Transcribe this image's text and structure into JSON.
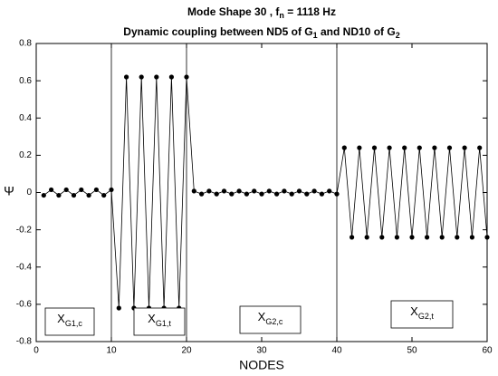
{
  "chart_data": {
    "type": "line",
    "title_parts": [
      "Mode Shape 30 , f",
      "n",
      " = 1118 Hz"
    ],
    "subtitle_parts": [
      "Dynamic coupling between ND5 of G",
      "1",
      " and ND10 of G",
      "2"
    ],
    "x_label": "NODES",
    "y_label": "Ψ",
    "x": [
      1,
      2,
      3,
      4,
      5,
      6,
      7,
      8,
      9,
      10,
      11,
      12,
      13,
      14,
      15,
      16,
      17,
      18,
      19,
      20,
      21,
      22,
      23,
      24,
      25,
      26,
      27,
      28,
      29,
      30,
      31,
      32,
      33,
      34,
      35,
      36,
      37,
      38,
      39,
      40,
      41,
      42,
      43,
      44,
      45,
      46,
      47,
      48,
      49,
      50,
      51,
      52,
      53,
      54,
      55,
      56,
      57,
      58,
      59,
      60
    ],
    "series": [
      {
        "color": "#000000",
        "values": [
          -0.015,
          0.015,
          -0.015,
          0.015,
          -0.015,
          0.015,
          -0.015,
          0.015,
          -0.015,
          0.015,
          -0.62,
          0.62,
          -0.62,
          0.62,
          -0.62,
          0.62,
          -0.62,
          0.62,
          -0.62,
          0.62,
          0.008,
          -0.008,
          0.008,
          -0.008,
          0.008,
          -0.008,
          0.008,
          -0.008,
          0.008,
          -0.008,
          0.008,
          -0.008,
          0.008,
          -0.008,
          0.008,
          -0.008,
          0.008,
          -0.008,
          0.008,
          -0.008,
          0.24,
          -0.24,
          0.24,
          -0.24,
          0.24,
          -0.24,
          0.24,
          -0.24,
          0.24,
          -0.24,
          0.24,
          -0.24,
          0.24,
          -0.24,
          0.24,
          -0.24,
          0.24,
          -0.24,
          0.24,
          -0.24
        ]
      }
    ],
    "vlines": [
      10,
      20,
      40
    ],
    "annotations": [
      {
        "main": "X",
        "sub": "G1,c"
      },
      {
        "main": "X",
        "sub": "G1,t"
      },
      {
        "main": "X",
        "sub": "G2,c"
      },
      {
        "main": "X",
        "sub": "G2,t"
      }
    ],
    "xlim": [
      0,
      60
    ],
    "xticks": [
      0,
      10,
      20,
      30,
      40,
      50,
      60
    ],
    "ylim": [
      -0.8,
      0.8
    ],
    "yticks": [
      -0.8,
      -0.6,
      -0.4,
      -0.2,
      0,
      0.2,
      0.4,
      0.6,
      0.8
    ],
    "grid": false
  }
}
